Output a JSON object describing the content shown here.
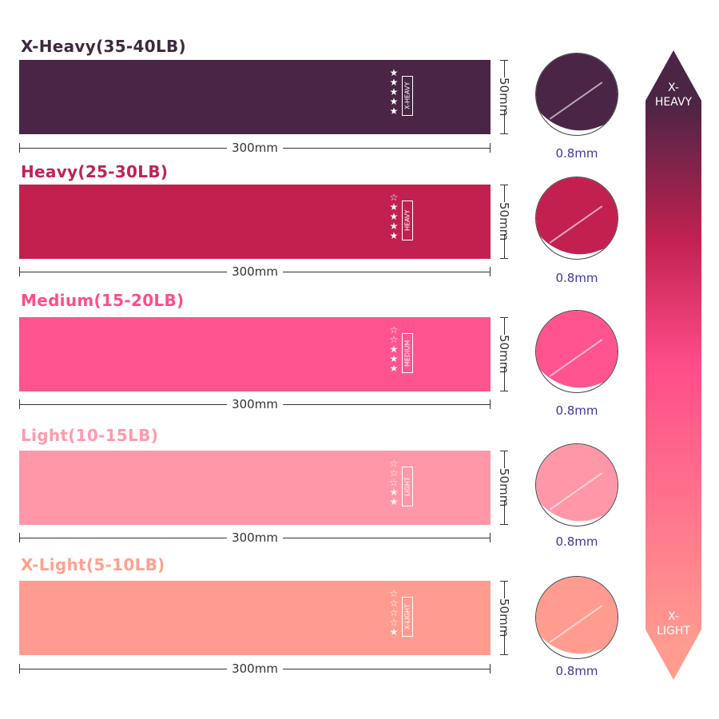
{
  "bands": [
    {
      "title": "X-Heavy(35-40LB)",
      "tag": "X-HEAVY",
      "stars_filled": 5,
      "stars_total": 5,
      "length": "300mm",
      "width": "50mm",
      "thickness": "0.8mm",
      "color": "#4a2545",
      "title_color": "#3d2a3d"
    },
    {
      "title": "Heavy(25-30LB)",
      "tag": "HEAVY",
      "stars_filled": 4,
      "stars_total": 5,
      "length": "300mm",
      "width": "50mm",
      "thickness": "0.8mm",
      "color": "#c22150",
      "title_color": "#c32155"
    },
    {
      "title": "Medium(15-20LB)",
      "tag": "MEDIUM",
      "stars_filled": 3,
      "stars_total": 5,
      "length": "300mm",
      "width": "50mm",
      "thickness": "0.8mm",
      "color": "#ff5490",
      "title_color": "#ff4d8a"
    },
    {
      "title": "Light(10-15LB)",
      "tag": "LIGHT",
      "stars_filled": 2,
      "stars_total": 5,
      "length": "300mm",
      "width": "50mm",
      "thickness": "0.8mm",
      "color": "#ff97a9",
      "title_color": "#ff9aae"
    },
    {
      "title": "X-Light(5-10LB)",
      "tag": "X-LIGHT",
      "stars_filled": 1,
      "stars_total": 5,
      "length": "300mm",
      "width": "50mm",
      "thickness": "0.8mm",
      "color": "#ff9c8f",
      "title_color": "#ffa18f"
    }
  ],
  "scale": {
    "top_label": "X-\nHEAVY",
    "bottom_label": "X-\nLIGHT",
    "top_color": "#4a2545",
    "mid_color": "#ff4d8a",
    "bottom_color": "#ff9c8f"
  }
}
